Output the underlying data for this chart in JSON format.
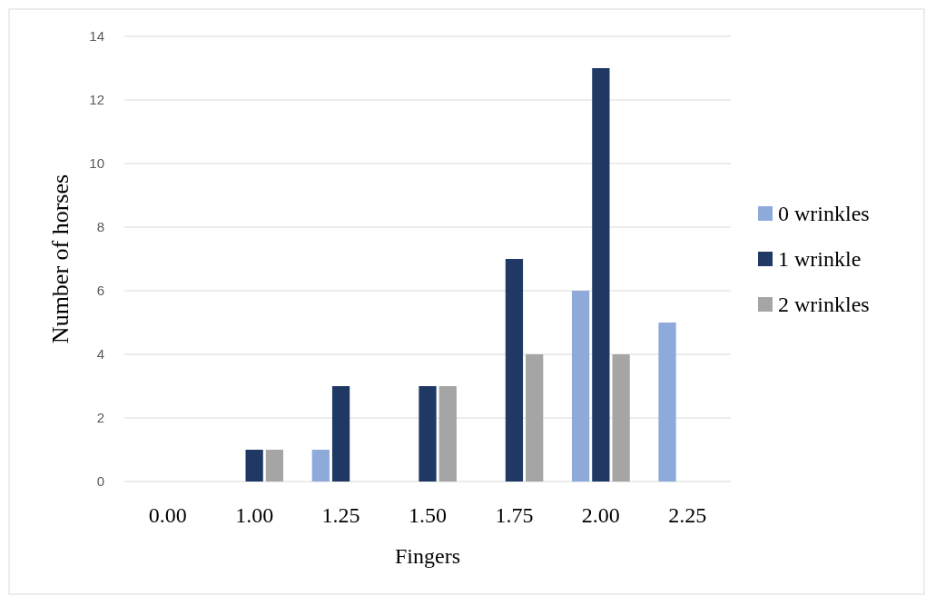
{
  "chart_data": {
    "type": "bar",
    "xlabel": "Fingers",
    "ylabel": "Number of horses",
    "categories": [
      "0.00",
      "1.00",
      "1.25",
      "1.50",
      "1.75",
      "2.00",
      "2.25"
    ],
    "series": [
      {
        "name": "0 wrinkles",
        "color": "#8eaadb",
        "values": [
          0,
          0,
          1,
          0,
          0,
          6,
          5
        ]
      },
      {
        "name": "1 wrinkle",
        "color": "#203864",
        "values": [
          0,
          1,
          3,
          3,
          7,
          13,
          0
        ]
      },
      {
        "name": "2 wrinkles",
        "color": "#a5a5a5",
        "values": [
          0,
          1,
          0,
          3,
          4,
          4,
          0
        ]
      }
    ],
    "ylim": [
      0,
      14
    ],
    "yticks": [
      0,
      2,
      4,
      6,
      8,
      10,
      12,
      14
    ],
    "grid": "y",
    "legend": "right"
  }
}
